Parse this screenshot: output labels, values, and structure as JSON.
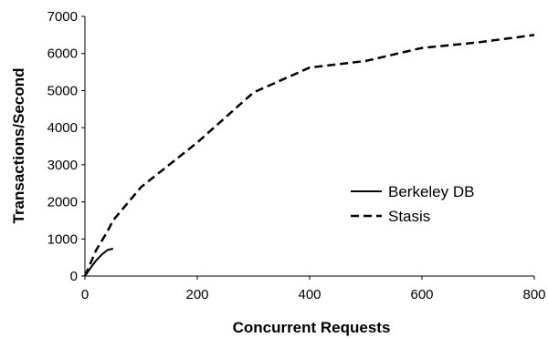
{
  "chart_data": {
    "type": "line",
    "xlabel": "Concurrent Requests",
    "ylabel": "Transactions/Second",
    "xlim": [
      0,
      800
    ],
    "ylim": [
      0,
      7000
    ],
    "xticks": [
      0,
      200,
      400,
      600,
      800
    ],
    "yticks": [
      0,
      1000,
      2000,
      3000,
      4000,
      5000,
      6000,
      7000
    ],
    "grid": false,
    "legend_position": "right",
    "series": [
      {
        "name": "Berkeley DB",
        "style": "solid",
        "color": "#000000",
        "x": [
          0,
          10,
          20,
          30,
          40,
          50
        ],
        "y": [
          0,
          220,
          420,
          580,
          700,
          740
        ]
      },
      {
        "name": "Stasis",
        "style": "dashed",
        "color": "#000000",
        "x": [
          0,
          10,
          20,
          30,
          40,
          50,
          100,
          200,
          300,
          400,
          500,
          600,
          700,
          800
        ],
        "y": [
          0,
          350,
          700,
          950,
          1200,
          1500,
          2400,
          3600,
          4950,
          5620,
          5800,
          6150,
          6300,
          6500
        ]
      }
    ]
  }
}
